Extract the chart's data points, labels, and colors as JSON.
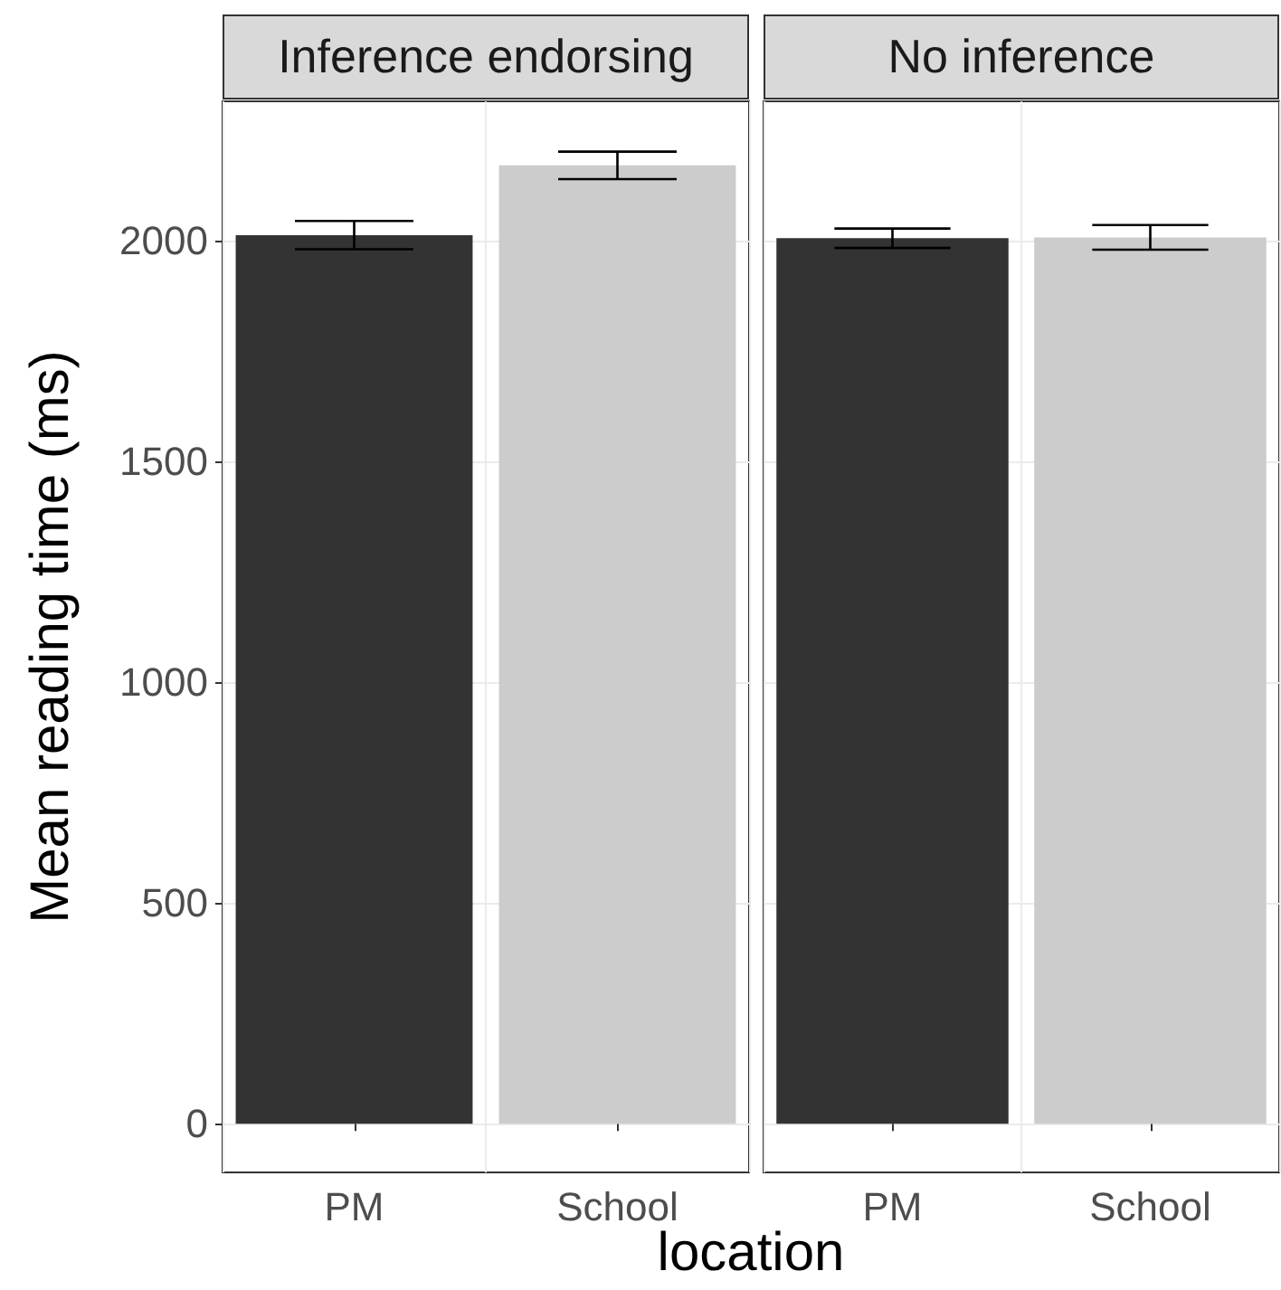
{
  "chart_data": [
    {
      "type": "bar",
      "title": "Inference endorsing",
      "xlabel": "location",
      "ylabel": "Mean reading time (ms)",
      "categories": [
        "PM",
        "School"
      ],
      "values": [
        2012,
        2170
      ],
      "errors": [
        32,
        31
      ],
      "colors": [
        "#333333",
        "#cccccc"
      ],
      "ylim": [
        -110,
        2315
      ],
      "yticks": [
        0,
        500,
        1000,
        1500,
        2000
      ],
      "grid": true
    },
    {
      "type": "bar",
      "title": "No inference",
      "categories": [
        "PM",
        "School"
      ],
      "values": [
        2005,
        2007
      ],
      "errors": [
        22,
        28
      ],
      "colors": [
        "#333333",
        "#cccccc"
      ],
      "ylim": [
        -110,
        2315
      ],
      "yticks": [
        0,
        500,
        1000,
        1500,
        2000
      ],
      "grid": true,
      "tick_labels": "x"
    }
  ]
}
